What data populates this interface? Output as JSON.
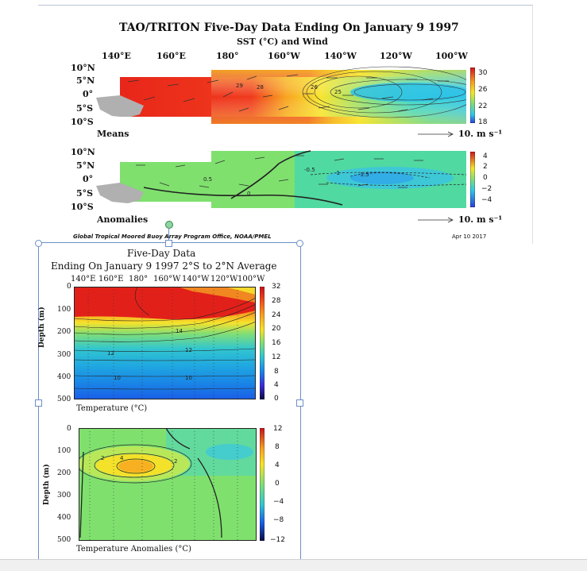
{
  "top_figure": {
    "title": "TAO/TRITON Five-Day Data Ending On January 9 1997",
    "subtitle": "SST (°C) and Wind",
    "lon_labels": [
      "140°E",
      "160°E",
      "180°",
      "160°W",
      "140°W",
      "120°W",
      "100°W"
    ],
    "lat_labels": [
      "10°N",
      "5°N",
      "0°",
      "5°S",
      "10°S"
    ],
    "means_label": "Means",
    "anomalies_label": "Anomalies",
    "wind_scale_means": "10. m s⁻¹",
    "wind_scale_anoms": "10. m s⁻¹",
    "means_colorbar_ticks": [
      "30",
      "26",
      "22",
      "18"
    ],
    "anom_colorbar_ticks": [
      "4",
      "2",
      "0",
      "−2",
      "−4"
    ],
    "contour_labels_means": [
      "29",
      "28",
      "26",
      "25"
    ],
    "contour_labels_anoms": [
      "0.5",
      "0",
      "-0.5",
      "-1",
      "-1.5"
    ],
    "credit": "Global Tropical Moored Buoy Array Program Office, NOAA/PMEL",
    "date": "Apr 10 2017"
  },
  "bottom_figure": {
    "title_line1": "Five-Day Data",
    "title_line2": "Ending On January 9 1997  2°S to 2°N Average",
    "lon_labels": [
      "140°E",
      "160°E",
      "180°",
      "160°W",
      "140°W",
      "120°W",
      "100°W"
    ],
    "depth_ticks": [
      "0",
      "100",
      "200",
      "300",
      "400",
      "500"
    ],
    "depth_axis_label": "Depth (m)",
    "temp_label": "Temperature  (°C)",
    "anom_label": "Temperature Anomalies (°C)",
    "temp_colorbar_ticks": [
      "32",
      "28",
      "24",
      "20",
      "16",
      "12",
      "8",
      "4",
      "0"
    ],
    "anom_colorbar_ticks": [
      "12",
      "8",
      "4",
      "0",
      "−4",
      "−8",
      "−12"
    ],
    "contour_labels_temp": [
      "14",
      "12",
      "12",
      "10",
      "10"
    ],
    "contour_labels_anom": [
      "4",
      "2",
      "2"
    ]
  },
  "colors": {
    "selection_handle": "#6b8fc8",
    "selection_handle_green": "#3fae5a"
  }
}
